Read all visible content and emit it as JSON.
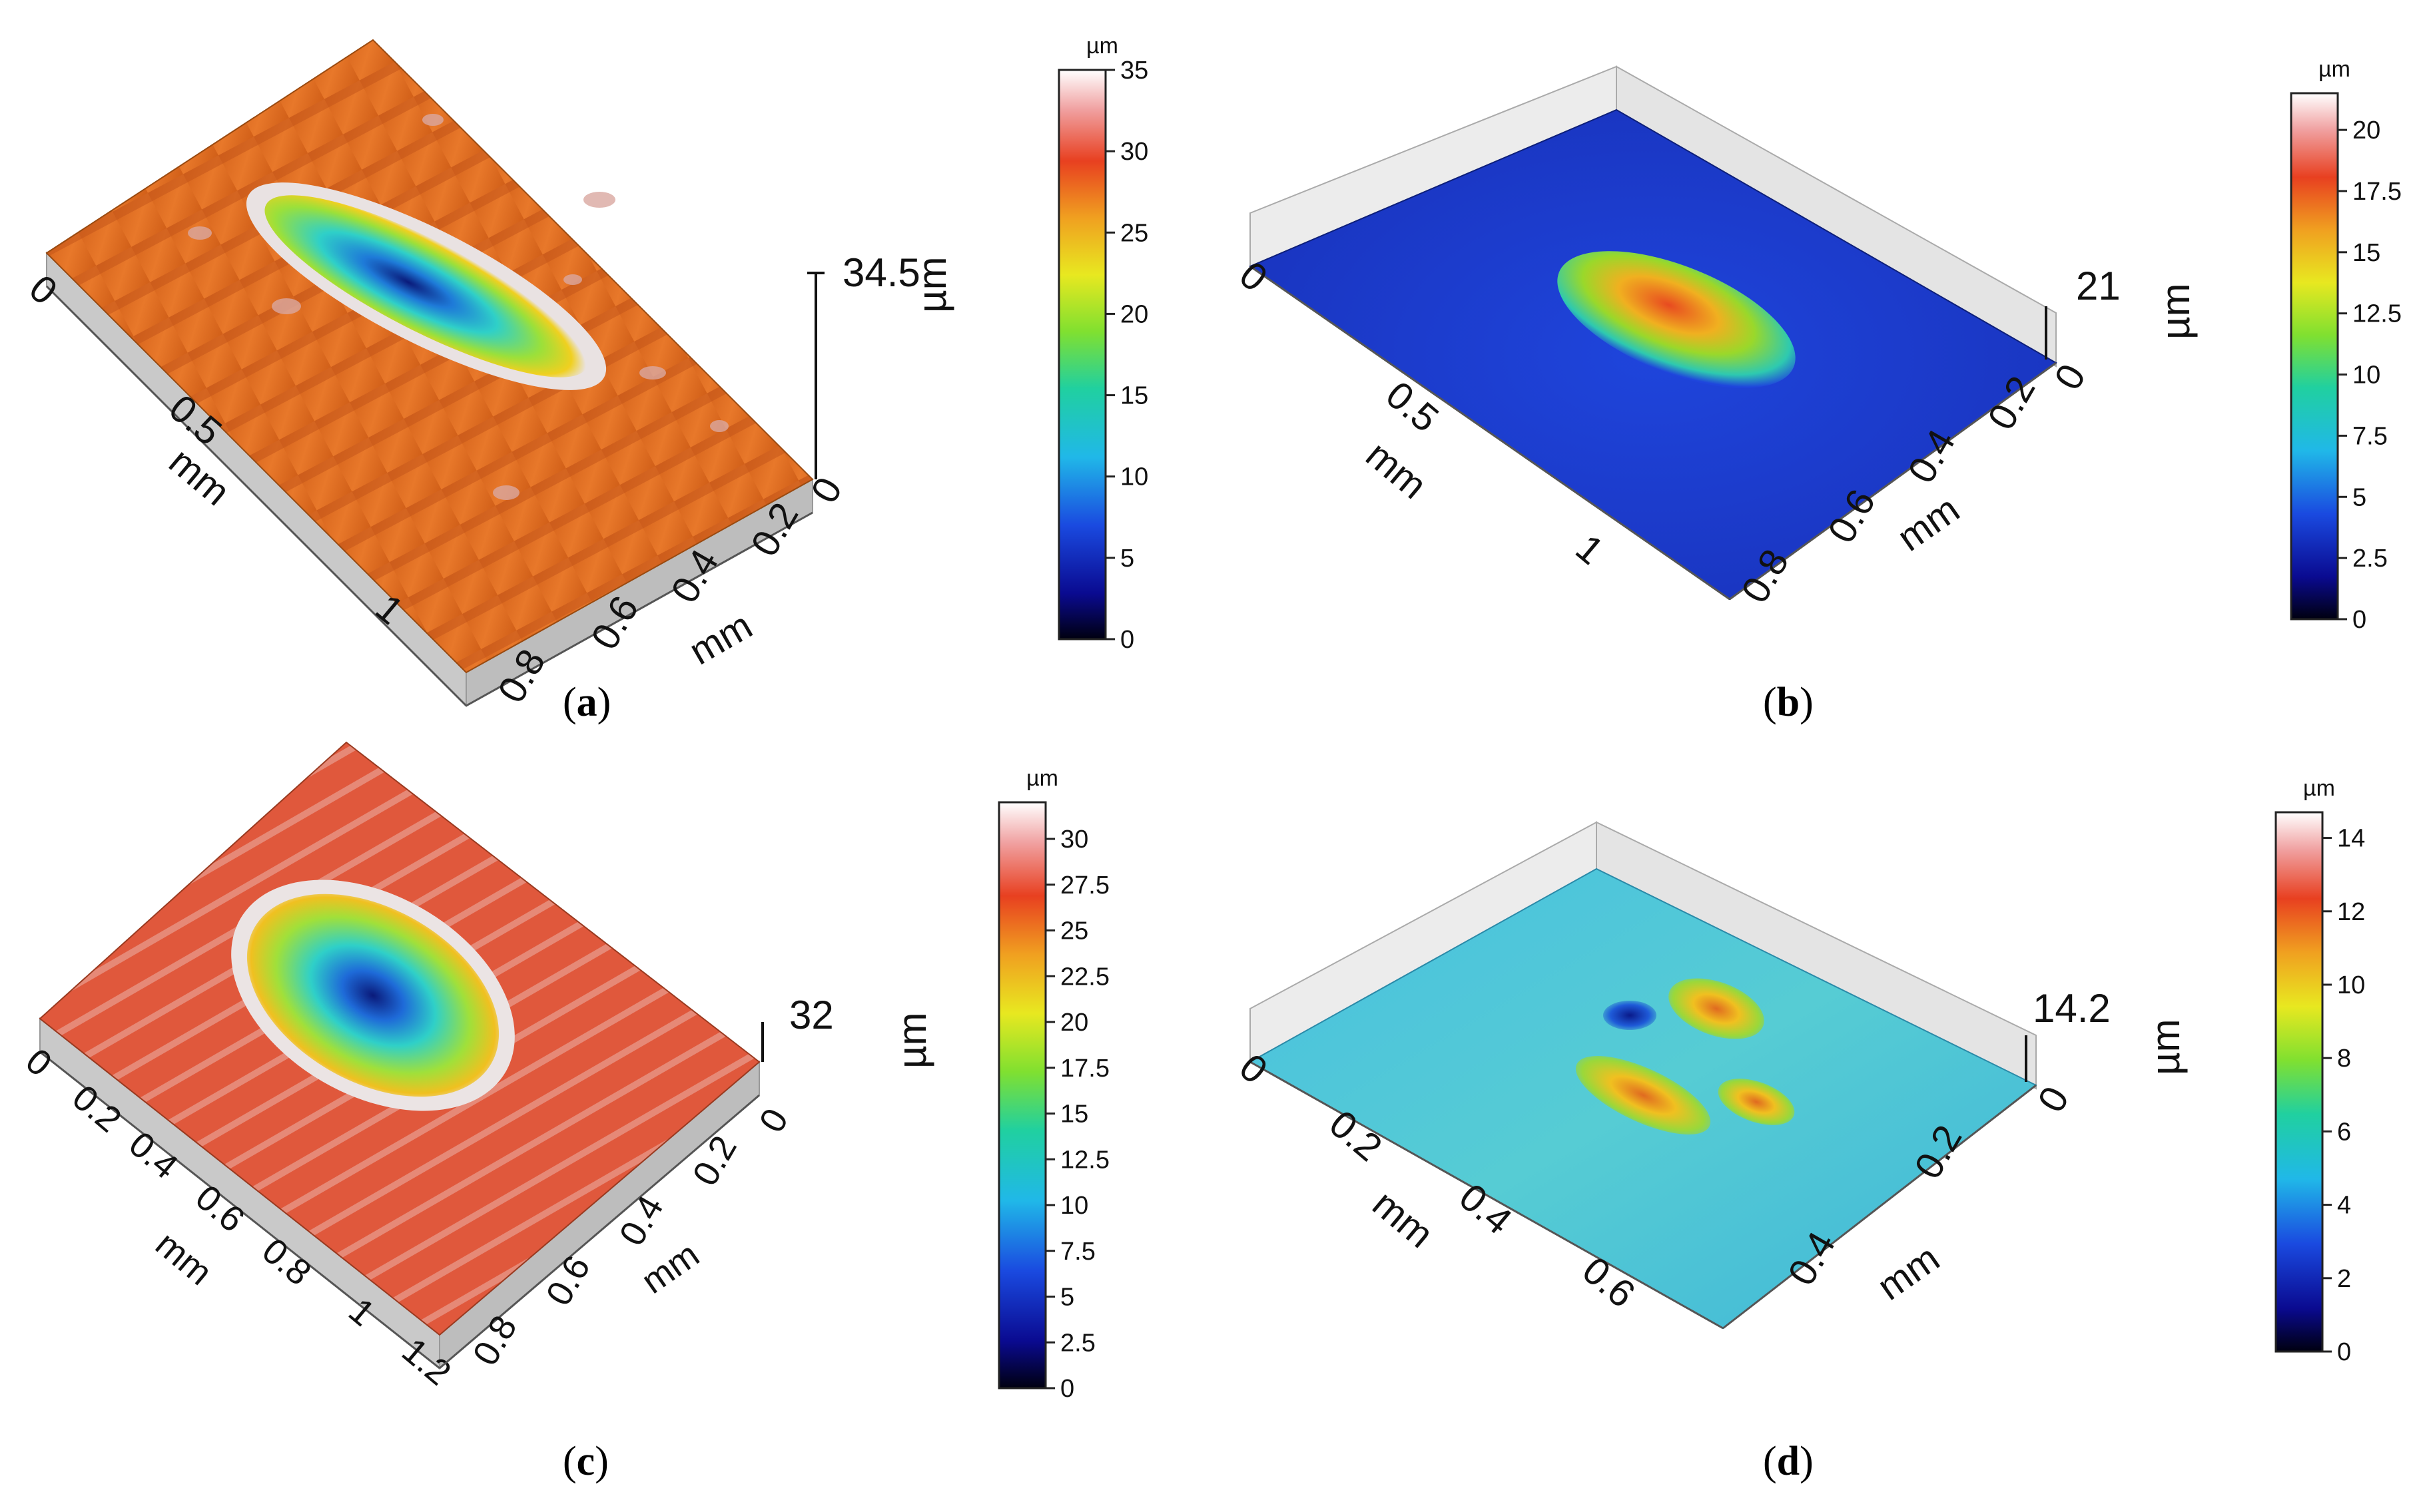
{
  "panels": [
    {
      "id": "a",
      "caption": "a",
      "colormap": "orange-surface",
      "x_axis": {
        "label": "mm",
        "ticks": [
          "0",
          "0.5",
          "1"
        ]
      },
      "y_axis": {
        "label": "mm",
        "ticks": [
          "0",
          "0.2",
          "0.4",
          "0.6",
          "0.8"
        ]
      },
      "z_axis": {
        "value": "34.5",
        "unit": "µm"
      },
      "colorbar": {
        "unit": "µm",
        "ticks": [
          "0",
          "5",
          "10",
          "15",
          "20",
          "25",
          "30",
          "35"
        ],
        "max": 35
      }
    },
    {
      "id": "b",
      "caption": "b",
      "colormap": "blue-surface",
      "x_axis": {
        "label": "mm",
        "ticks": [
          "0",
          "0.5",
          "1"
        ]
      },
      "y_axis": {
        "label": "mm",
        "ticks": [
          "0",
          "0.2",
          "0.4",
          "0.6",
          "0.8"
        ]
      },
      "z_axis": {
        "value": "21",
        "unit": "µm"
      },
      "colorbar": {
        "unit": "µm",
        "ticks": [
          "0",
          "2.5",
          "5",
          "7.5",
          "10",
          "12.5",
          "15",
          "17.5",
          "20"
        ],
        "max": 21.5
      }
    },
    {
      "id": "c",
      "caption": "c",
      "colormap": "red-orange-surface",
      "x_axis": {
        "label": "mm",
        "ticks": [
          "0",
          "0.2",
          "0.4",
          "0.6",
          "0.8",
          "1",
          "1.2"
        ]
      },
      "y_axis": {
        "label": "mm",
        "ticks": [
          "0",
          "0.2",
          "0.4",
          "0.6",
          "0.8"
        ]
      },
      "z_axis": {
        "value": "32",
        "unit": "µm"
      },
      "colorbar": {
        "unit": "µm",
        "ticks": [
          "0",
          "2.5",
          "5",
          "7.5",
          "10",
          "12.5",
          "15",
          "17.5",
          "20",
          "22.5",
          "25",
          "27.5",
          "30"
        ],
        "max": 32
      }
    },
    {
      "id": "d",
      "caption": "d",
      "colormap": "cyan-surface",
      "x_axis": {
        "label": "mm",
        "ticks": [
          "0",
          "0.2",
          "0.4",
          "0.6"
        ]
      },
      "y_axis": {
        "label": "mm",
        "ticks": [
          "0",
          "0.2",
          "0.4"
        ]
      },
      "z_axis": {
        "value": "14.2",
        "unit": "µm"
      },
      "colorbar": {
        "unit": "µm",
        "ticks": [
          "0",
          "2",
          "4",
          "6",
          "8",
          "10",
          "12",
          "14"
        ],
        "max": 14.7
      }
    }
  ],
  "colors": {
    "orange_surface": "#e0701e",
    "blue_surface": "#1e3ad0",
    "red_surface": "#e0553a",
    "cyan_surface": "#4cc3d8",
    "wall": "#e8e8e8"
  }
}
